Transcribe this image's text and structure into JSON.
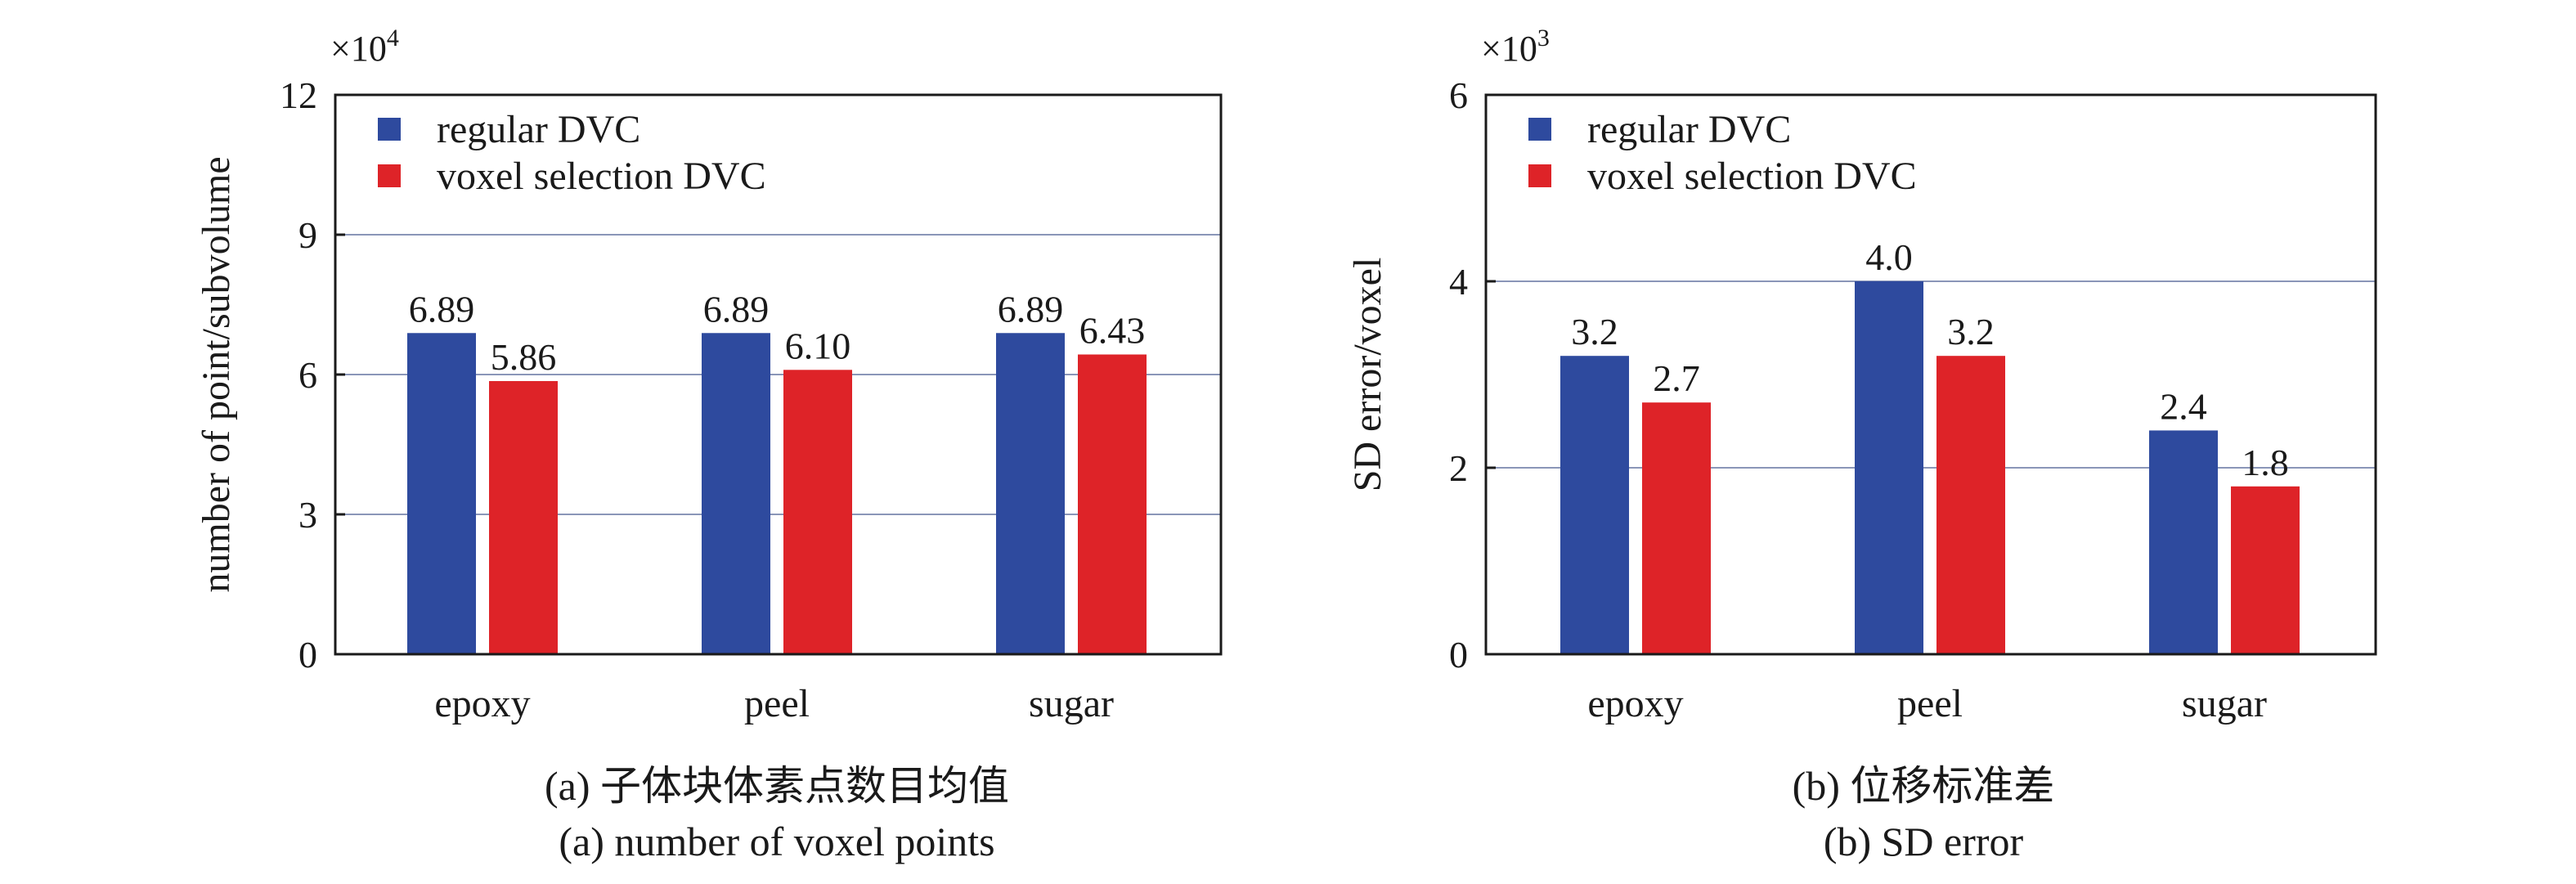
{
  "chart_data": [
    {
      "type": "bar",
      "categories": [
        "epoxy",
        "peel",
        "sugar"
      ],
      "series": [
        {
          "name": "regular DVC",
          "values": [
            6.89,
            6.89,
            6.89
          ],
          "labels": [
            "6.89",
            "6.89",
            "6.89"
          ],
          "color": "#2e4a9e"
        },
        {
          "name": "voxel selection DVC",
          "values": [
            5.86,
            6.1,
            6.43
          ],
          "labels": [
            "5.86",
            "6.10",
            "6.43"
          ],
          "color": "#de2328"
        }
      ],
      "ylabel": "number of point/subvolume",
      "yscale_label": "×10",
      "yscale_exp": "4",
      "ylim": [
        0,
        12
      ],
      "yticks": [
        0,
        3,
        6,
        9,
        12
      ],
      "grid": true,
      "legend": "top-left",
      "caption_cn": "(a) 子体块体素点数目均值",
      "caption_en": "(a) number of voxel points"
    },
    {
      "type": "bar",
      "categories": [
        "epoxy",
        "peel",
        "sugar"
      ],
      "series": [
        {
          "name": "regular DVC",
          "values": [
            3.2,
            4.0,
            2.4
          ],
          "labels": [
            "3.2",
            "4.0",
            "2.4"
          ],
          "color": "#2e4a9e"
        },
        {
          "name": "voxel selection DVC",
          "values": [
            2.7,
            3.2,
            1.8
          ],
          "labels": [
            "2.7",
            "3.2",
            "1.8"
          ],
          "color": "#de2328"
        }
      ],
      "ylabel": "SD error/voxel",
      "yscale_label": "×10",
      "yscale_exp": "3",
      "ylim": [
        0,
        6
      ],
      "yticks": [
        0,
        2,
        4,
        6
      ],
      "grid": true,
      "legend": "top-left",
      "caption_cn": "(b) 位移标准差",
      "caption_en": "(b) SD error"
    }
  ]
}
